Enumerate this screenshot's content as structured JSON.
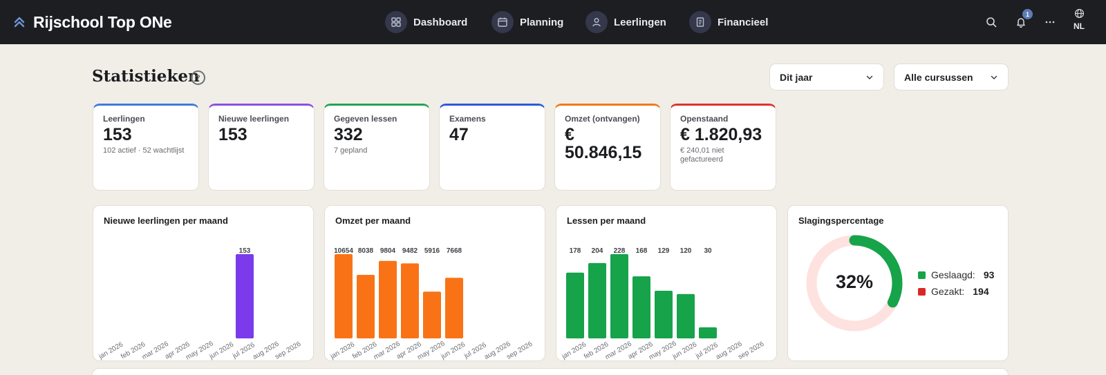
{
  "app": {
    "title": "Rijschool Top ONe"
  },
  "nav": [
    {
      "label": "Dashboard",
      "icon": "dashboard-grid-icon"
    },
    {
      "label": "Planning",
      "icon": "calendar-icon"
    },
    {
      "label": "Leerlingen",
      "icon": "user-icon"
    },
    {
      "label": "Financieel",
      "icon": "document-icon"
    }
  ],
  "topbar": {
    "notifications_count": "1",
    "language": "NL"
  },
  "page": {
    "title": "Statistieken",
    "help": "?"
  },
  "filters": {
    "period": "Dit jaar",
    "course": "Alle cursussen"
  },
  "kpis": [
    {
      "label": "Leerlingen",
      "value": "153",
      "sub": "102 actief · 52 wachtlijst",
      "color": "#3f7bd6"
    },
    {
      "label": "Nieuwe leerlingen",
      "value": "153",
      "sub": "",
      "color": "#8b4fe3"
    },
    {
      "label": "Gegeven lessen",
      "value": "332",
      "sub": "7 gepland",
      "color": "#23a455"
    },
    {
      "label": "Examens",
      "value": "47",
      "sub": "",
      "color": "#2a5bd7"
    },
    {
      "label": "Omzet (ontvangen)",
      "value": "€ 50.846,15",
      "sub": "",
      "color": "#f07a1a"
    },
    {
      "label": "Openstaand",
      "value": "€ 1.820,93",
      "sub": "€ 240,01 niet gefactureerd",
      "color": "#e0322d"
    }
  ],
  "chart_data": [
    {
      "type": "bar",
      "title": "Nieuwe leerlingen per maand",
      "categories": [
        "jan 2026",
        "feb 2026",
        "mar 2026",
        "apr 2026",
        "may 2026",
        "jun 2026",
        "jul 2026",
        "aug 2026",
        "sep 2026"
      ],
      "values": [
        0,
        0,
        0,
        0,
        0,
        0,
        153,
        0,
        0
      ],
      "labels": [
        "",
        "",
        "",
        "",
        "",
        "",
        "153",
        "",
        ""
      ],
      "color": "#7c3aed",
      "ylim": [
        0,
        153
      ]
    },
    {
      "type": "bar",
      "title": "Omzet per maand",
      "categories": [
        "jan 2026",
        "feb 2026",
        "mar 2026",
        "apr 2026",
        "may 2026",
        "jun 2026",
        "jul 2026",
        "aug 2026",
        "sep 2026"
      ],
      "values": [
        10654,
        8038,
        9804,
        9482,
        5916,
        7668,
        0,
        0,
        0
      ],
      "labels": [
        "10654",
        "8038",
        "9804",
        "9482",
        "5916",
        "7668",
        "",
        "",
        ""
      ],
      "color": "#f97316",
      "ylim": [
        0,
        10654
      ]
    },
    {
      "type": "bar",
      "title": "Lessen per maand",
      "categories": [
        "jan 2026",
        "feb 2026",
        "mar 2026",
        "apr 2026",
        "may 2026",
        "jun 2026",
        "jul 2026",
        "aug 2026",
        "sep 2026"
      ],
      "values": [
        178,
        204,
        228,
        168,
        129,
        120,
        30,
        0,
        0
      ],
      "labels": [
        "178",
        "204",
        "228",
        "168",
        "129",
        "120",
        "30",
        "",
        ""
      ],
      "color": "#16a34a",
      "ylim": [
        0,
        228
      ]
    },
    {
      "type": "pie",
      "title": "Slagingspercentage",
      "center_label": "32%",
      "slices": [
        {
          "name": "Geslaagd:",
          "value": 93,
          "color": "#16a34a"
        },
        {
          "name": "Gezakt:",
          "value": 194,
          "color": "#dc2626"
        }
      ]
    }
  ]
}
